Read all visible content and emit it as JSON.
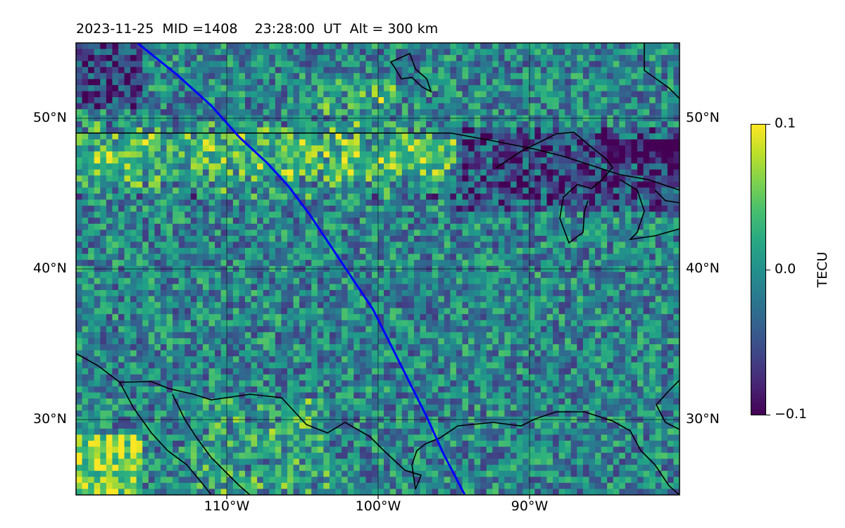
{
  "title": "2023-11-25  MID =1408    23:28:00  UT  Alt = 300 km",
  "map": {
    "lat_labels_left": [
      "50°N",
      "40°N",
      "30°N"
    ],
    "lat_labels_right": [
      "50°N",
      "40°N",
      "30°N"
    ],
    "lon_labels": [
      "110°W",
      "100°W",
      "90°W"
    ],
    "colormap": "viridis",
    "track_color": "#0000ff",
    "coast_color": "#000000",
    "grid": true
  },
  "colorbar": {
    "label": "TECU",
    "ticks": [
      "0.1",
      "0.0",
      "−0.1"
    ],
    "min": -0.1,
    "max": 0.1
  }
}
